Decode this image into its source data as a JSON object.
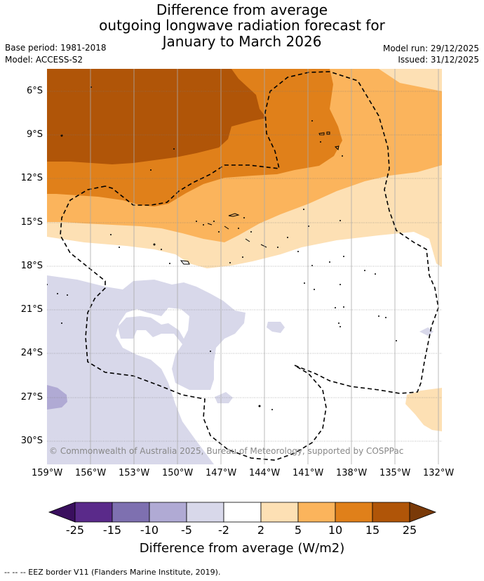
{
  "title": {
    "line1": "Difference from average",
    "line2": "outgoing longwave radiation forecast for",
    "line3": "January to March 2026"
  },
  "meta": {
    "base_period": "Base period: 1981-2018",
    "model": "Model: ACCESS-S2",
    "model_run": "Model run: 29/12/2025",
    "issued": "Issued: 31/12/2025"
  },
  "map": {
    "lat_labels": [
      "6°S",
      "9°S",
      "12°S",
      "15°S",
      "18°S",
      "21°S",
      "24°S",
      "27°S",
      "30°S"
    ],
    "lon_labels": [
      "159°W",
      "156°W",
      "153°W",
      "150°W",
      "147°W",
      "144°W",
      "141°W",
      "138°W",
      "135°W",
      "132°W"
    ],
    "credit": "© Commonwealth of Australia 2025, Bureau of Meteorology, supported by COSPPac"
  },
  "colorbar": {
    "labels": [
      "-25",
      "-15",
      "-10",
      "-5",
      "-2",
      "2",
      "5",
      "10",
      "15",
      "25"
    ],
    "colors": [
      "#3a0f5e",
      "#5a2a8a",
      "#7e70b0",
      "#b0aad4",
      "#d8d8ea",
      "#ffffff",
      "#fde0b4",
      "#fbb45c",
      "#e0801a",
      "#b05508",
      "#7a3a08"
    ],
    "title": "Difference from average (W/m2)"
  },
  "legend": {
    "eez_label": "--  --  -- EEZ border V11 (Flanders Marine Institute, 2019)."
  }
}
